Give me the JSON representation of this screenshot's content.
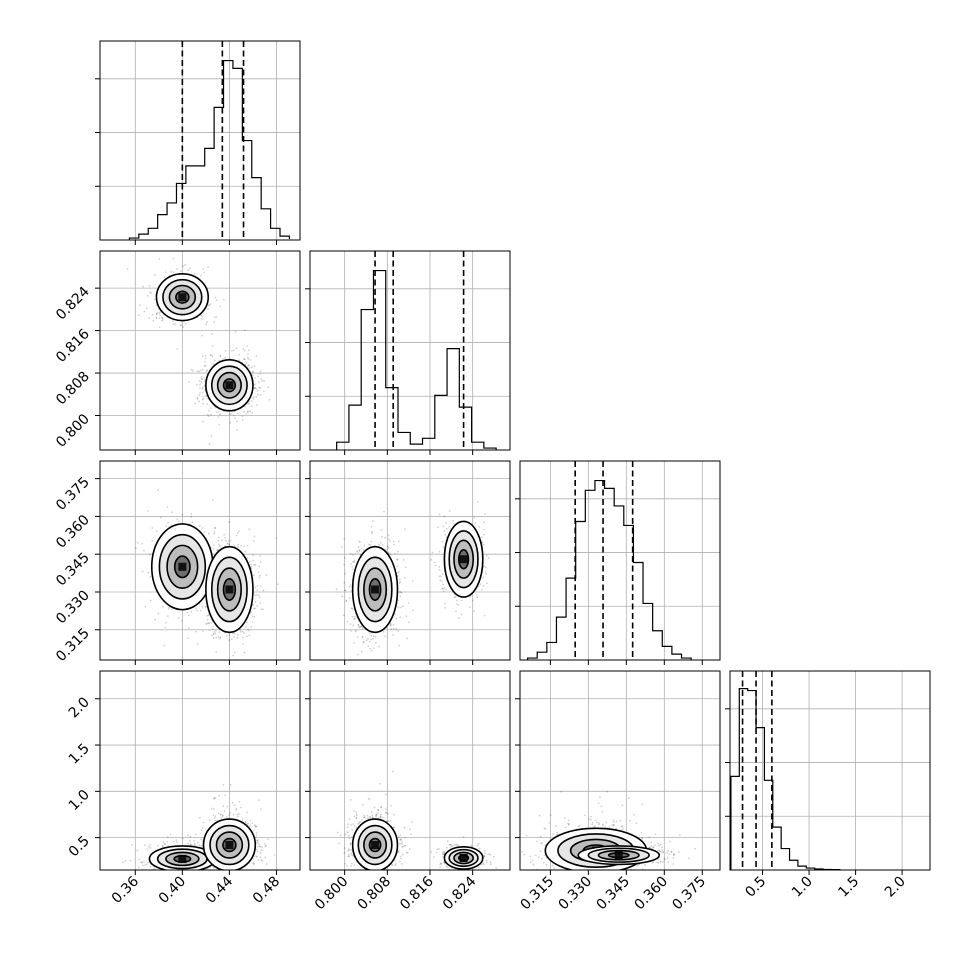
{
  "chart_data": {
    "type": "corner",
    "parameters": [
      {
        "ticks": [
          0.36,
          0.4,
          0.44,
          0.48
        ],
        "tick_labels": [
          "0.36",
          "0.40",
          "0.44",
          "0.48"
        ],
        "range": [
          0.33,
          0.5
        ],
        "quantiles": [
          0.4,
          0.434,
          0.452
        ],
        "hist_bins": [
          0.355,
          0.363,
          0.371,
          0.379,
          0.387,
          0.395,
          0.403,
          0.411,
          0.419,
          0.427,
          0.435,
          0.443,
          0.451,
          0.459,
          0.467,
          0.475,
          0.483,
          0.491
        ],
        "hist_counts": [
          0.01,
          0.03,
          0.06,
          0.13,
          0.19,
          0.29,
          0.38,
          0.38,
          0.47,
          0.68,
          0.92,
          0.88,
          0.51,
          0.32,
          0.16,
          0.06,
          0.02,
          0.005
        ]
      },
      {
        "ticks": [
          0.8,
          0.808,
          0.816,
          0.824
        ],
        "tick_labels": [
          "0.800",
          "0.808",
          "0.816",
          "0.824"
        ],
        "range": [
          0.7935,
          0.831
        ],
        "quantiles": [
          0.8057,
          0.8091,
          0.8223
        ],
        "hist_bins": [
          0.7985,
          0.8008,
          0.8031,
          0.8054,
          0.8077,
          0.81,
          0.8123,
          0.8146,
          0.8169,
          0.8192,
          0.8215,
          0.8238,
          0.8261,
          0.8284
        ],
        "hist_counts": [
          0.04,
          0.23,
          0.72,
          0.92,
          0.32,
          0.09,
          0.03,
          0.06,
          0.28,
          0.52,
          0.22,
          0.04,
          0.01
        ],
        "hist_note": ""
      },
      {
        "ticks": [
          0.315,
          0.33,
          0.345,
          0.36,
          0.375
        ],
        "tick_labels": [
          "0.315",
          "0.330",
          "0.345",
          "0.360",
          "0.375"
        ],
        "range": [
          0.303,
          0.382
        ],
        "quantiles": [
          0.3248,
          0.3358,
          0.3475
        ],
        "hist_bins": [
          0.306,
          0.3098,
          0.3136,
          0.3174,
          0.3212,
          0.325,
          0.3288,
          0.3326,
          0.3364,
          0.3402,
          0.344,
          0.3478,
          0.3516,
          0.3554,
          0.3592,
          0.363,
          0.3668,
          0.3706
        ],
        "hist_counts": [
          0.01,
          0.04,
          0.09,
          0.22,
          0.42,
          0.71,
          0.87,
          0.92,
          0.88,
          0.79,
          0.69,
          0.5,
          0.29,
          0.15,
          0.07,
          0.03,
          0.01
        ]
      },
      {
        "ticks": [
          0.5,
          1.0,
          1.5,
          2.0
        ],
        "tick_labels": [
          "0.5",
          "1.0",
          "1.5",
          "2.0"
        ],
        "range": [
          0.15,
          2.3
        ],
        "quantiles": [
          0.285,
          0.43,
          0.6
        ],
        "hist_bins": [
          0.16,
          0.25,
          0.34,
          0.43,
          0.52,
          0.61,
          0.7,
          0.79,
          0.88,
          0.97,
          1.06,
          1.15,
          1.24,
          1.33
        ],
        "hist_counts": [
          0.48,
          0.93,
          0.92,
          0.73,
          0.46,
          0.22,
          0.11,
          0.05,
          0.02,
          0.01,
          0.005,
          0.003,
          0.002
        ]
      }
    ],
    "y_axis_ticks": [
      null,
      {
        "ticks": [
          0.8,
          0.808,
          0.816,
          0.824
        ],
        "tick_labels": [
          "0.800",
          "0.808",
          "0.816",
          "0.824"
        ]
      },
      {
        "ticks": [
          0.315,
          0.33,
          0.345,
          0.36,
          0.375
        ],
        "tick_labels": [
          "0.315",
          "0.330",
          "0.345",
          "0.360",
          "0.375"
        ]
      },
      {
        "ticks": [
          0.5,
          1.0,
          1.5,
          2.0
        ],
        "tick_labels": [
          "0.5",
          "1.0",
          "1.5",
          "2.0"
        ]
      }
    ],
    "pair_modes": {
      "1-0": [
        {
          "cx": 0.4,
          "cy": 0.8223,
          "sx": 0.011,
          "sy": 0.0022,
          "w": 0.35
        },
        {
          "cx": 0.44,
          "cy": 0.8057,
          "sx": 0.01,
          "sy": 0.0024,
          "w": 0.65
        }
      ],
      "2-0": [
        {
          "cx": 0.4,
          "cy": 0.34,
          "sx": 0.013,
          "sy": 0.0085,
          "w": 0.35
        },
        {
          "cx": 0.44,
          "cy": 0.331,
          "sx": 0.01,
          "sy": 0.0085,
          "w": 0.65
        }
      ],
      "2-1": [
        {
          "cx": 0.8057,
          "cy": 0.331,
          "sx": 0.0021,
          "sy": 0.0085,
          "w": 0.65
        },
        {
          "cx": 0.8223,
          "cy": 0.343,
          "sx": 0.0018,
          "sy": 0.0075,
          "w": 0.35
        }
      ],
      "3-0": [
        {
          "cx": 0.4,
          "cy": 0.27,
          "sx": 0.014,
          "sy": 0.07,
          "w": 0.35
        },
        {
          "cx": 0.44,
          "cy": 0.42,
          "sx": 0.011,
          "sy": 0.14,
          "w": 0.65
        }
      ],
      "3-1": [
        {
          "cx": 0.8057,
          "cy": 0.42,
          "sx": 0.0021,
          "sy": 0.14,
          "w": 0.65
        },
        {
          "cx": 0.8223,
          "cy": 0.28,
          "sx": 0.0018,
          "sy": 0.06,
          "w": 0.35
        }
      ],
      "3-2": [
        {
          "cx": 0.333,
          "cy": 0.36,
          "sx": 0.01,
          "sy": 0.12,
          "w": 0.55
        },
        {
          "cx": 0.342,
          "cy": 0.31,
          "sx": 0.008,
          "sy": 0.05,
          "w": 0.45
        }
      ]
    },
    "grid": true,
    "contour_levels_sigma": [
      0.5,
      1.0,
      1.5,
      2.0
    ],
    "xlabel": "",
    "ylabel": "",
    "title": ""
  }
}
